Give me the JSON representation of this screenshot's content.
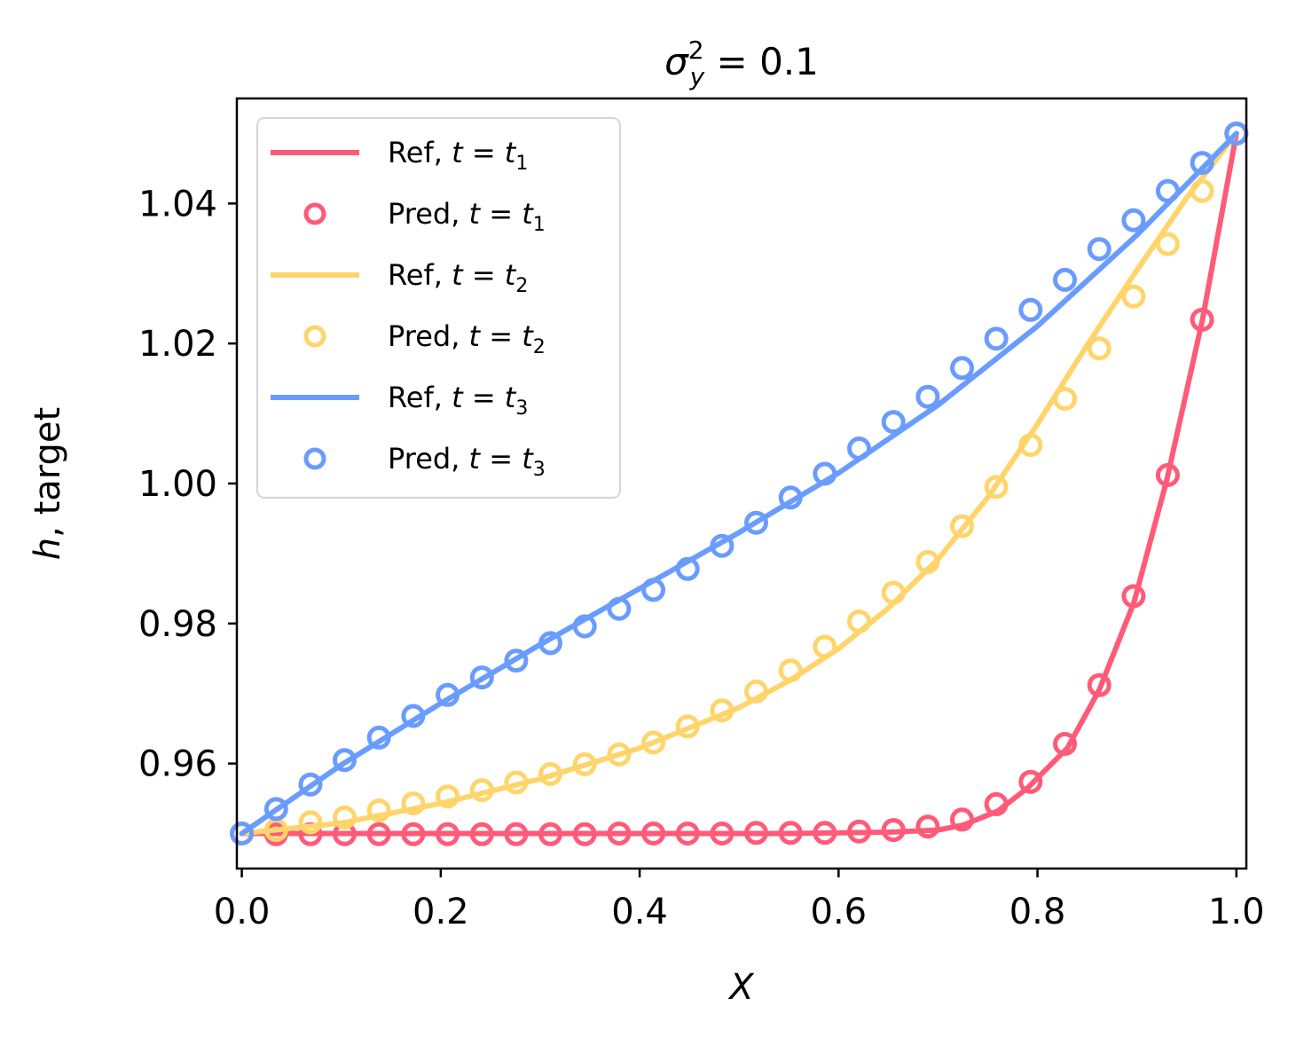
{
  "chart_data": {
    "type": "line",
    "title": "σ²_y = 0.1",
    "title_parts": {
      "base": "σ",
      "sup": "2",
      "sub": "y",
      "rest": " = 0.1"
    },
    "xlabel": "X",
    "ylabel_italic": "h",
    "ylabel_rest": ", target",
    "xlim": [
      -0.005,
      1.01
    ],
    "ylim": [
      0.945,
      1.055
    ],
    "xticks": [
      0.0,
      0.2,
      0.4,
      0.6,
      0.8,
      1.0
    ],
    "xtick_labels": [
      "0.0",
      "0.2",
      "0.4",
      "0.6",
      "0.8",
      "1.0"
    ],
    "yticks": [
      0.96,
      0.98,
      1.0,
      1.02,
      1.04
    ],
    "ytick_labels": [
      "0.96",
      "0.98",
      "1.00",
      "1.02",
      "1.04"
    ],
    "legend_position": "top-left",
    "series": [
      {
        "name": "Ref, t = t1",
        "kind": "line",
        "color": "#ff5a78",
        "x": [
          0.0,
          0.1,
          0.2,
          0.3,
          0.4,
          0.5,
          0.55,
          0.6,
          0.65,
          0.7,
          0.725,
          0.76,
          0.79,
          0.83,
          0.862,
          0.897,
          0.93,
          0.966,
          1.0
        ],
        "y": [
          0.95,
          0.95,
          0.95,
          0.95,
          0.95,
          0.95,
          0.95,
          0.9501,
          0.9502,
          0.9505,
          0.9512,
          0.9532,
          0.9565,
          0.9622,
          0.9705,
          0.983,
          1.0005,
          1.0235,
          1.05
        ]
      },
      {
        "name": "Pred, t = t1",
        "kind": "markers",
        "color": "#ff5a78",
        "x": [
          0.0,
          0.0345,
          0.069,
          0.1034,
          0.1379,
          0.1724,
          0.2069,
          0.2414,
          0.2759,
          0.3103,
          0.3448,
          0.3793,
          0.4138,
          0.4483,
          0.4828,
          0.5172,
          0.5517,
          0.5862,
          0.6207,
          0.6552,
          0.6897,
          0.7241,
          0.7586,
          0.7931,
          0.8276,
          0.8621,
          0.8966,
          0.931,
          0.9655,
          1.0
        ],
        "y": [
          0.95,
          0.9499,
          0.9499,
          0.9499,
          0.9499,
          0.9499,
          0.9499,
          0.9499,
          0.9499,
          0.9499,
          0.9499,
          0.95,
          0.95,
          0.95,
          0.95,
          0.9501,
          0.9501,
          0.9501,
          0.9503,
          0.9505,
          0.951,
          0.952,
          0.9542,
          0.9574,
          0.9628,
          0.9712,
          0.9839,
          1.0012,
          1.0234,
          1.05
        ]
      },
      {
        "name": "Ref, t = t2",
        "kind": "line",
        "color": "#ffd56b",
        "x": [
          0.0,
          0.1,
          0.2,
          0.3,
          0.4,
          0.5,
          0.55,
          0.6,
          0.65,
          0.7,
          0.75,
          0.8,
          0.85,
          0.9,
          0.95,
          1.0
        ],
        "y": [
          0.95,
          0.9515,
          0.9543,
          0.9578,
          0.9622,
          0.968,
          0.9718,
          0.9764,
          0.9822,
          0.9892,
          0.998,
          1.0085,
          1.0198,
          1.0305,
          1.0408,
          1.05
        ]
      },
      {
        "name": "Pred, t = t2",
        "kind": "markers",
        "color": "#ffd56b",
        "x": [
          0.0,
          0.0345,
          0.069,
          0.1034,
          0.1379,
          0.1724,
          0.2069,
          0.2414,
          0.2759,
          0.3103,
          0.3448,
          0.3793,
          0.4138,
          0.4483,
          0.4828,
          0.5172,
          0.5517,
          0.5862,
          0.6207,
          0.6552,
          0.6897,
          0.7241,
          0.7586,
          0.7931,
          0.8276,
          0.8621,
          0.8966,
          0.931,
          0.9655,
          1.0
        ],
        "y": [
          0.95,
          0.9505,
          0.9516,
          0.9523,
          0.9533,
          0.9543,
          0.9553,
          0.9562,
          0.9573,
          0.9585,
          0.9599,
          0.9613,
          0.963,
          0.9653,
          0.9676,
          0.9703,
          0.9733,
          0.9767,
          0.9803,
          0.9844,
          0.9888,
          0.9939,
          0.9995,
          1.0055,
          1.0121,
          1.0193,
          1.0267,
          1.0342,
          1.0418,
          1.05
        ]
      },
      {
        "name": "Ref, t = t3",
        "kind": "line",
        "color": "#6a9cff",
        "x": [
          0.0,
          0.1,
          0.2,
          0.3,
          0.4,
          0.5,
          0.6,
          0.7,
          0.8,
          0.9,
          1.0
        ],
        "y": [
          0.95,
          0.9598,
          0.9686,
          0.977,
          0.985,
          0.993,
          1.0015,
          1.0112,
          1.0225,
          1.0355,
          1.05
        ]
      },
      {
        "name": "Pred, t = t3",
        "kind": "markers",
        "color": "#6a9cff",
        "x": [
          0.0,
          0.0345,
          0.069,
          0.1034,
          0.1379,
          0.1724,
          0.2069,
          0.2414,
          0.2759,
          0.3103,
          0.3448,
          0.3793,
          0.4138,
          0.4483,
          0.4828,
          0.5172,
          0.5517,
          0.5862,
          0.6207,
          0.6552,
          0.6897,
          0.7241,
          0.7586,
          0.7931,
          0.8276,
          0.8621,
          0.8966,
          0.931,
          0.9655,
          1.0
        ],
        "y": [
          0.95,
          0.9535,
          0.957,
          0.9605,
          0.9637,
          0.9668,
          0.9698,
          0.9723,
          0.9747,
          0.9772,
          0.9796,
          0.9821,
          0.9848,
          0.9878,
          0.9911,
          0.9944,
          0.998,
          1.0014,
          1.005,
          1.0088,
          1.0124,
          1.0165,
          1.0207,
          1.0248,
          1.0291,
          1.0335,
          1.0376,
          1.0418,
          1.0458,
          1.05
        ]
      }
    ],
    "legend": [
      {
        "base": "Ref, ",
        "var": "t",
        "eq": " = ",
        "sub_base": "t",
        "sub": "1"
      },
      {
        "base": "Pred, ",
        "var": "t",
        "eq": " = ",
        "sub_base": "t",
        "sub": "1"
      },
      {
        "base": "Ref, ",
        "var": "t",
        "eq": " = ",
        "sub_base": "t",
        "sub": "2"
      },
      {
        "base": "Pred, ",
        "var": "t",
        "eq": " = ",
        "sub_base": "t",
        "sub": "2"
      },
      {
        "base": "Ref, ",
        "var": "t",
        "eq": " = ",
        "sub_base": "t",
        "sub": "3"
      },
      {
        "base": "Pred, ",
        "var": "t",
        "eq": " = ",
        "sub_base": "t",
        "sub": "3"
      }
    ]
  }
}
